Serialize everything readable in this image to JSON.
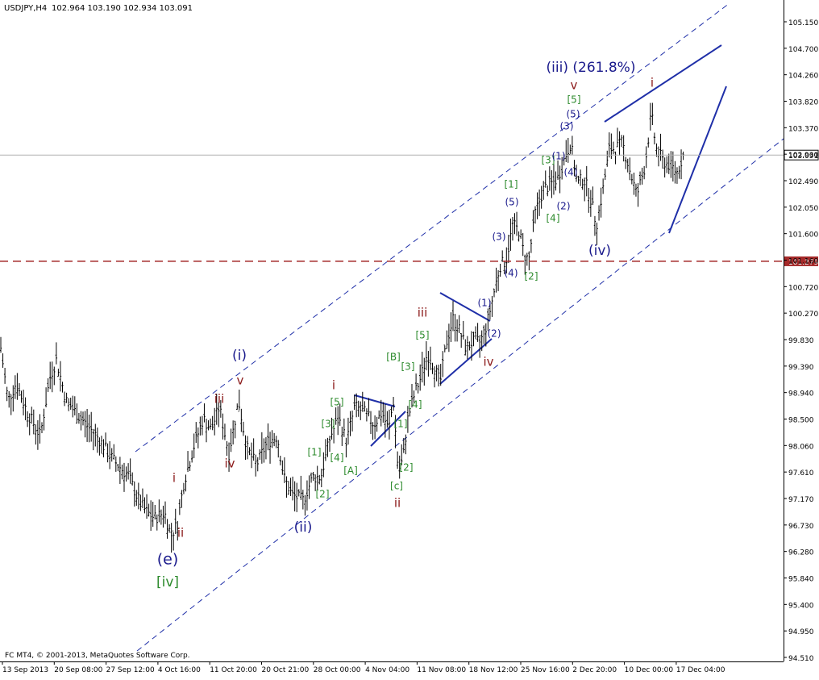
{
  "header": {
    "symbol": "USDJPY,H4",
    "ohlc": "102.964 103.190 102.934 103.091"
  },
  "footer": {
    "copyright": "FC MT4, © 2001-2013, MetaQuotes Software Corp."
  },
  "chart_data": {
    "type": "ohlc-bar",
    "ylim": [
      94.51,
      105.35
    ],
    "grid": false,
    "y_ticks": [
      "105.150",
      "104.700",
      "104.260",
      "103.820",
      "103.370",
      "102.930",
      "102.490",
      "102.050",
      "101.600",
      "101.160",
      "100.720",
      "100.270",
      "99.830",
      "99.390",
      "98.940",
      "98.500",
      "98.060",
      "97.610",
      "97.170",
      "96.730",
      "96.280",
      "95.840",
      "95.400",
      "94.950",
      "94.510"
    ],
    "x_ticks": [
      "13 Sep 2013",
      "20 Sep 08:00",
      "27 Sep 12:00",
      "4 Oct 16:00",
      "11 Oct 20:00",
      "20 Oct 21:00",
      "28 Oct 00:00",
      "4 Nov 04:00",
      "11 Nov 08:00",
      "18 Nov 12:00",
      "25 Nov 16:00",
      "2 Dec 20:00",
      "10 Dec 00:00",
      "17 Dec 04:00"
    ],
    "current_price": {
      "label": "103.091",
      "value": 103.091
    },
    "level_line": {
      "label": "101.279",
      "value": 101.279,
      "color": "#a52a2a"
    },
    "price_path": [
      [
        0,
        99.9
      ],
      [
        10,
        98.9
      ],
      [
        20,
        99.2
      ],
      [
        34,
        98.7
      ],
      [
        50,
        98.3
      ],
      [
        62,
        99.3
      ],
      [
        70,
        99.6
      ],
      [
        82,
        98.9
      ],
      [
        100,
        98.6
      ],
      [
        120,
        98.3
      ],
      [
        140,
        97.9
      ],
      [
        160,
        97.6
      ],
      [
        172,
        97.2
      ],
      [
        182,
        97.0
      ],
      [
        192,
        96.9
      ],
      [
        204,
        97.0
      ],
      [
        212,
        96.6
      ],
      [
        220,
        96.8
      ],
      [
        228,
        97.5
      ],
      [
        240,
        98.1
      ],
      [
        252,
        98.6
      ],
      [
        262,
        98.4
      ],
      [
        272,
        98.8
      ],
      [
        284,
        98.0
      ],
      [
        296,
        98.9
      ],
      [
        306,
        98.1
      ],
      [
        318,
        97.8
      ],
      [
        332,
        98.2
      ],
      [
        344,
        98.3
      ],
      [
        352,
        97.6
      ],
      [
        362,
        97.3
      ],
      [
        376,
        97.2
      ],
      [
        388,
        97.6
      ],
      [
        398,
        97.6
      ],
      [
        410,
        98.3
      ],
      [
        420,
        98.6
      ],
      [
        430,
        98.2
      ],
      [
        440,
        98.8
      ],
      [
        452,
        98.7
      ],
      [
        464,
        98.5
      ],
      [
        474,
        98.7
      ],
      [
        482,
        98.4
      ],
      [
        488,
        98.9
      ],
      [
        494,
        97.7
      ],
      [
        500,
        97.9
      ],
      [
        506,
        98.6
      ],
      [
        514,
        99.0
      ],
      [
        522,
        99.3
      ],
      [
        530,
        99.7
      ],
      [
        538,
        99.5
      ],
      [
        546,
        99.2
      ],
      [
        554,
        99.9
      ],
      [
        562,
        100.3
      ],
      [
        570,
        100.1
      ],
      [
        578,
        99.8
      ],
      [
        586,
        99.9
      ],
      [
        596,
        99.9
      ],
      [
        604,
        100.2
      ],
      [
        612,
        100.7
      ],
      [
        620,
        101.2
      ],
      [
        628,
        101.3
      ],
      [
        636,
        101.9
      ],
      [
        644,
        101.8
      ],
      [
        650,
        101.4
      ],
      [
        656,
        101.3
      ],
      [
        664,
        102.1
      ],
      [
        674,
        102.5
      ],
      [
        684,
        102.6
      ],
      [
        692,
        102.7
      ],
      [
        702,
        103.1
      ],
      [
        708,
        103.3
      ],
      [
        716,
        102.6
      ],
      [
        724,
        102.7
      ],
      [
        732,
        102.4
      ],
      [
        740,
        101.9
      ],
      [
        748,
        102.5
      ],
      [
        756,
        103.2
      ],
      [
        764,
        103.2
      ],
      [
        772,
        103.3
      ],
      [
        780,
        102.9
      ],
      [
        790,
        102.4
      ],
      [
        800,
        102.9
      ],
      [
        808,
        103.8
      ],
      [
        814,
        103.2
      ],
      [
        822,
        103.0
      ],
      [
        832,
        102.9
      ],
      [
        840,
        102.8
      ],
      [
        848,
        103.1
      ]
    ],
    "annotations": [
      {
        "text": "(i)",
        "x": 297,
        "y": 441,
        "color": "#1a1a8c",
        "size": 17
      },
      {
        "text": "v",
        "x": 298,
        "y": 472,
        "color": "#8b1a1a",
        "size": 15
      },
      {
        "text": "iii",
        "x": 272,
        "y": 495,
        "color": "#8b1a1a",
        "size": 15
      },
      {
        "text": "iv",
        "x": 285,
        "y": 575,
        "color": "#8b1a1a",
        "size": 15
      },
      {
        "text": "i",
        "x": 216,
        "y": 593,
        "color": "#8b1a1a",
        "size": 15
      },
      {
        "text": "ii",
        "x": 224,
        "y": 661,
        "color": "#8b1a1a",
        "size": 15
      },
      {
        "text": "(e)",
        "x": 208,
        "y": 694,
        "color": "#1a1a8c",
        "size": 19
      },
      {
        "text": "[iv]",
        "x": 208,
        "y": 722,
        "color": "#2e8b2e",
        "size": 17
      },
      {
        "text": "(ii)",
        "x": 376,
        "y": 654,
        "color": "#1a1a8c",
        "size": 17
      },
      {
        "text": "i",
        "x": 414,
        "y": 478,
        "color": "#8b1a1a",
        "size": 15
      },
      {
        "text": "[5]",
        "x": 418,
        "y": 499,
        "color": "#2e8b2e",
        "size": 12
      },
      {
        "text": "[3]",
        "x": 407,
        "y": 526,
        "color": "#2e8b2e",
        "size": 12
      },
      {
        "text": "[1]",
        "x": 390,
        "y": 561,
        "color": "#2e8b2e",
        "size": 12
      },
      {
        "text": "[4]",
        "x": 418,
        "y": 568,
        "color": "#2e8b2e",
        "size": 12
      },
      {
        "text": "[A]",
        "x": 435,
        "y": 584,
        "color": "#2e8b2e",
        "size": 12
      },
      {
        "text": "[2]",
        "x": 400,
        "y": 613,
        "color": "#2e8b2e",
        "size": 12
      },
      {
        "text": "[B]",
        "x": 488,
        "y": 443,
        "color": "#2e8b2e",
        "size": 12
      },
      {
        "text": "[3]",
        "x": 506,
        "y": 455,
        "color": "#2e8b2e",
        "size": 12
      },
      {
        "text": "[1]",
        "x": 497,
        "y": 526,
        "color": "#2e8b2e",
        "size": 12
      },
      {
        "text": "[4]",
        "x": 515,
        "y": 502,
        "color": "#2e8b2e",
        "size": 12
      },
      {
        "text": "[2]",
        "x": 504,
        "y": 580,
        "color": "#2e8b2e",
        "size": 12
      },
      {
        "text": "[c]",
        "x": 492,
        "y": 603,
        "color": "#2e8b2e",
        "size": 12
      },
      {
        "text": "ii",
        "x": 493,
        "y": 624,
        "color": "#8b1a1a",
        "size": 15
      },
      {
        "text": "[5]",
        "x": 524,
        "y": 416,
        "color": "#2e8b2e",
        "size": 12
      },
      {
        "text": "iii",
        "x": 524,
        "y": 388,
        "color": "#8b1a1a",
        "size": 15
      },
      {
        "text": "(1)",
        "x": 601,
        "y": 376,
        "color": "#1a1a8c",
        "size": 12
      },
      {
        "text": "(2)",
        "x": 613,
        "y": 414,
        "color": "#1a1a8c",
        "size": 12
      },
      {
        "text": "iv",
        "x": 606,
        "y": 449,
        "color": "#8b1a1a",
        "size": 15
      },
      {
        "text": "(3)",
        "x": 619,
        "y": 294,
        "color": "#1a1a8c",
        "size": 12
      },
      {
        "text": "(4)",
        "x": 634,
        "y": 339,
        "color": "#1a1a8c",
        "size": 12
      },
      {
        "text": "[2]",
        "x": 659,
        "y": 343,
        "color": "#2e8b2e",
        "size": 12
      },
      {
        "text": "(5)",
        "x": 635,
        "y": 251,
        "color": "#1a1a8c",
        "size": 12
      },
      {
        "text": "[1]",
        "x": 634,
        "y": 229,
        "color": "#2e8b2e",
        "size": 12
      },
      {
        "text": "[4]",
        "x": 686,
        "y": 271,
        "color": "#2e8b2e",
        "size": 12
      },
      {
        "text": "(2)",
        "x": 699,
        "y": 256,
        "color": "#1a1a8c",
        "size": 12
      },
      {
        "text": "[3]",
        "x": 680,
        "y": 199,
        "color": "#2e8b2e",
        "size": 12
      },
      {
        "text": "(1)",
        "x": 693,
        "y": 194,
        "color": "#1a1a8c",
        "size": 12
      },
      {
        "text": "(4)",
        "x": 708,
        "y": 214,
        "color": "#1a1a8c",
        "size": 12
      },
      {
        "text": "(3)",
        "x": 703,
        "y": 157,
        "color": "#1a1a8c",
        "size": 12
      },
      {
        "text": "(5)",
        "x": 711,
        "y": 142,
        "color": "#1a1a8c",
        "size": 12
      },
      {
        "text": "[5]",
        "x": 712,
        "y": 124,
        "color": "#2e8b2e",
        "size": 12
      },
      {
        "text": "v",
        "x": 712,
        "y": 106,
        "color": "#8b1a1a",
        "size": 15
      },
      {
        "text": "(iii) (261.8%)",
        "x": 733,
        "y": 84,
        "color": "#1a1a8c",
        "size": 17
      },
      {
        "text": "(iv)",
        "x": 744,
        "y": 311,
        "color": "#1a1a8c",
        "size": 17
      },
      {
        "text": "i",
        "x": 809,
        "y": 103,
        "color": "#8b1a1a",
        "size": 15
      }
    ]
  }
}
